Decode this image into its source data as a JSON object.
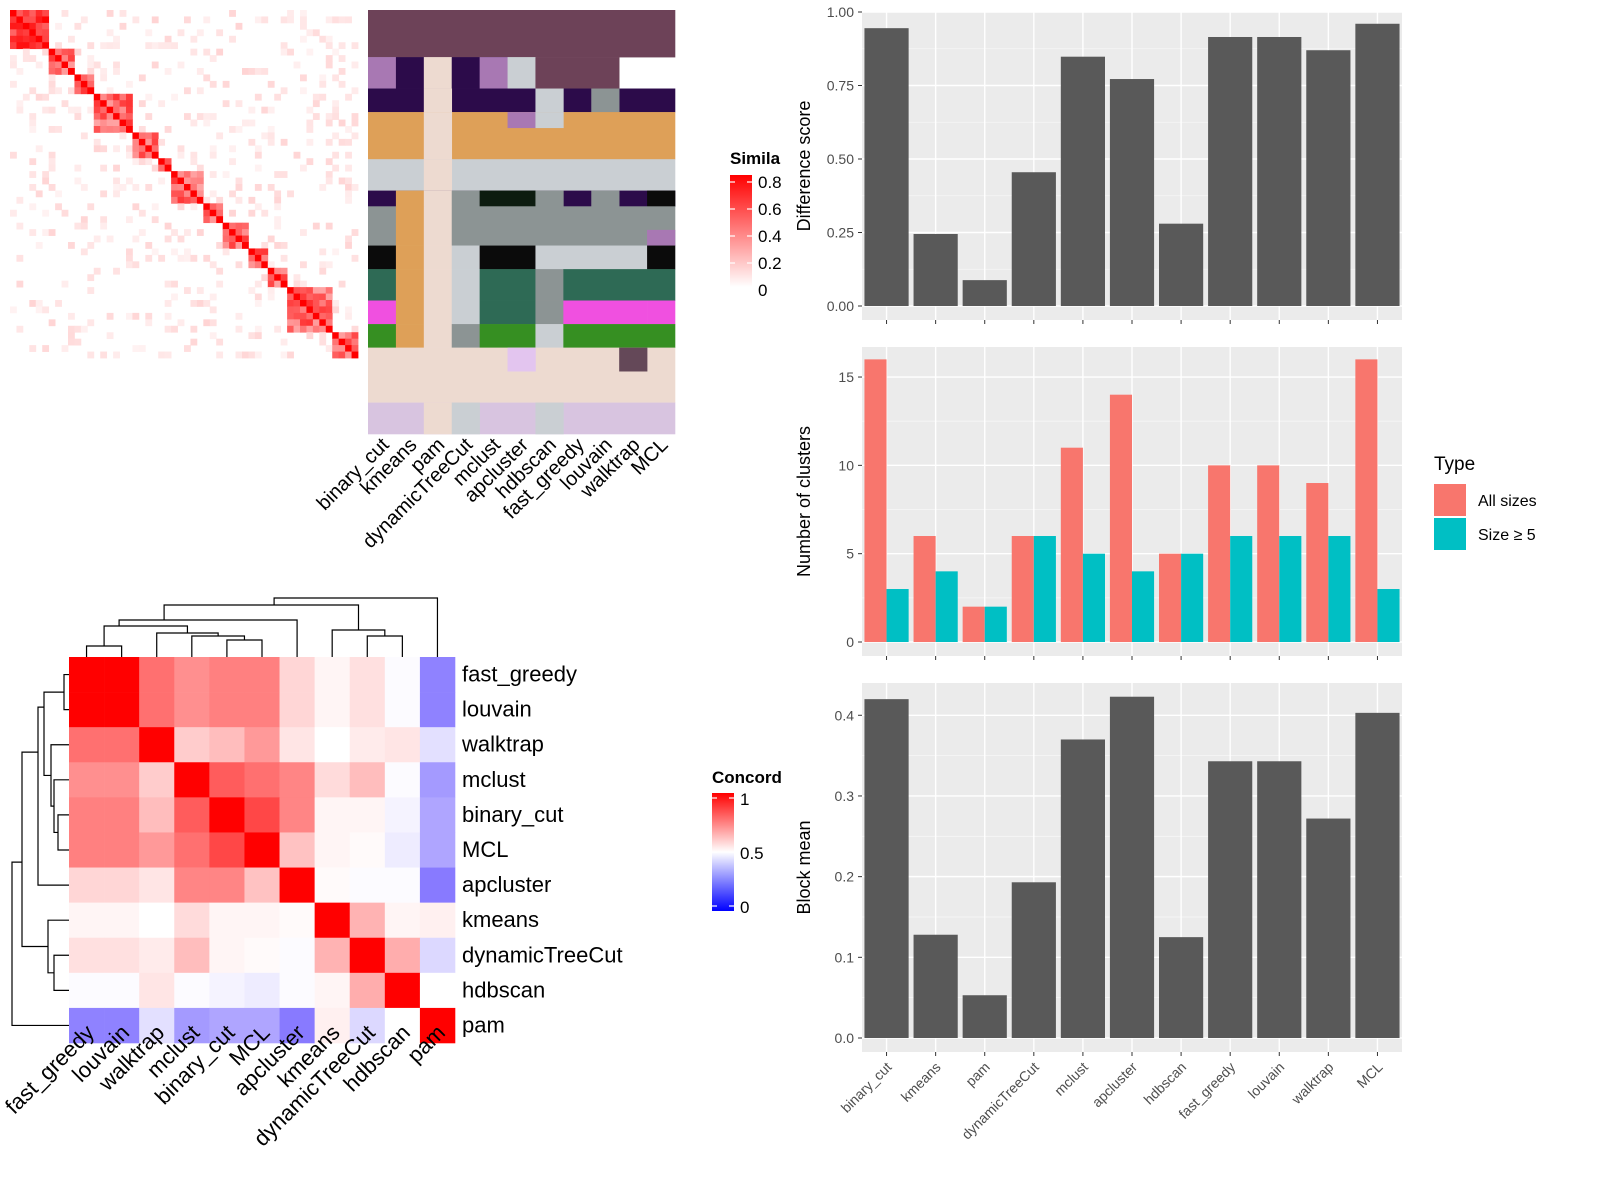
{
  "methods": [
    "binary_cut",
    "kmeans",
    "pam",
    "dynamicTreeCut",
    "mclust",
    "apcluster",
    "hdbscan",
    "fast_greedy",
    "louvain",
    "walktrap",
    "MCL"
  ],
  "similarity_legend": {
    "title": "Simila",
    "ticks": [
      "0.8",
      "0.6",
      "0.4",
      "0.2",
      "0"
    ]
  },
  "concordance_legend": {
    "title": "Concord",
    "ticks": [
      "1",
      "0.5",
      "0"
    ]
  },
  "cluster_palette": [
    "#6d4258",
    "#a878b3",
    "#2c0b4a",
    "#dea058",
    "#cacfd3",
    "#0d1c10",
    "#8c9494",
    "#0b0b0b",
    "#2e6a55",
    "#f050e0",
    "#368f22",
    "#eddad0",
    "#e3c5ef",
    "#d8c4e0",
    "#644858"
  ],
  "cluster_blocks": [
    {
      "rows": [
        0,
        6
      ],
      "cols": [
        0,
        10
      ],
      "c": 0
    },
    {
      "rows": [
        6,
        10
      ],
      "cols": [
        0,
        0
      ],
      "c": 1
    },
    {
      "rows": [
        6,
        10
      ],
      "cols": [
        1,
        1
      ],
      "c": 2
    },
    {
      "rows": [
        6,
        10
      ],
      "cols": [
        2,
        2
      ],
      "c": 11
    },
    {
      "rows": [
        6,
        10
      ],
      "cols": [
        3,
        4
      ],
      "c": 2
    },
    {
      "rows": [
        6,
        10
      ],
      "cols": [
        4,
        4
      ],
      "c": 1
    },
    {
      "rows": [
        6,
        10
      ],
      "cols": [
        5,
        5
      ],
      "c": 4
    },
    {
      "rows": [
        6,
        10
      ],
      "cols": [
        6,
        8
      ],
      "c": 0
    },
    {
      "rows": [
        10,
        13
      ],
      "cols": [
        0,
        10
      ],
      "c": 2
    },
    {
      "rows": [
        10,
        13
      ],
      "cols": [
        2,
        2
      ],
      "c": 11
    },
    {
      "rows": [
        10,
        13
      ],
      "cols": [
        6,
        6
      ],
      "c": 4
    },
    {
      "rows": [
        10,
        13
      ],
      "cols": [
        8,
        8
      ],
      "c": 6
    },
    {
      "rows": [
        13,
        19
      ],
      "cols": [
        0,
        10
      ],
      "c": 3
    },
    {
      "rows": [
        13,
        19
      ],
      "cols": [
        2,
        2
      ],
      "c": 11
    },
    {
      "rows": [
        13,
        15
      ],
      "cols": [
        5,
        5
      ],
      "c": 1
    },
    {
      "rows": [
        13,
        15
      ],
      "cols": [
        6,
        6
      ],
      "c": 4
    },
    {
      "rows": [
        19,
        23
      ],
      "cols": [
        0,
        10
      ],
      "c": 4
    },
    {
      "rows": [
        19,
        23
      ],
      "cols": [
        2,
        2
      ],
      "c": 11
    },
    {
      "rows": [
        23,
        25
      ],
      "cols": [
        0,
        10
      ],
      "c": 2
    },
    {
      "rows": [
        23,
        25
      ],
      "cols": [
        1,
        1
      ],
      "c": 3
    },
    {
      "rows": [
        23,
        25
      ],
      "cols": [
        2,
        2
      ],
      "c": 11
    },
    {
      "rows": [
        23,
        25
      ],
      "cols": [
        3,
        3
      ],
      "c": 6
    },
    {
      "rows": [
        23,
        25
      ],
      "cols": [
        4,
        5
      ],
      "c": 5
    },
    {
      "rows": [
        23,
        25
      ],
      "cols": [
        6,
        6
      ],
      "c": 6
    },
    {
      "rows": [
        23,
        25
      ],
      "cols": [
        8,
        8
      ],
      "c": 6
    },
    {
      "rows": [
        23,
        25
      ],
      "cols": [
        10,
        10
      ],
      "c": 7
    },
    {
      "rows": [
        25,
        30
      ],
      "cols": [
        0,
        0
      ],
      "c": 6
    },
    {
      "rows": [
        25,
        30
      ],
      "cols": [
        1,
        1
      ],
      "c": 3
    },
    {
      "rows": [
        25,
        30
      ],
      "cols": [
        2,
        2
      ],
      "c": 11
    },
    {
      "rows": [
        25,
        30
      ],
      "cols": [
        3,
        10
      ],
      "c": 6
    },
    {
      "rows": [
        28,
        30
      ],
      "cols": [
        10,
        10
      ],
      "c": 1
    },
    {
      "rows": [
        30,
        33
      ],
      "cols": [
        0,
        0
      ],
      "c": 7
    },
    {
      "rows": [
        30,
        33
      ],
      "cols": [
        1,
        1
      ],
      "c": 3
    },
    {
      "rows": [
        30,
        33
      ],
      "cols": [
        2,
        2
      ],
      "c": 11
    },
    {
      "rows": [
        30,
        33
      ],
      "cols": [
        3,
        3
      ],
      "c": 4
    },
    {
      "rows": [
        30,
        33
      ],
      "cols": [
        4,
        5
      ],
      "c": 7
    },
    {
      "rows": [
        30,
        33
      ],
      "cols": [
        6,
        9
      ],
      "c": 4
    },
    {
      "rows": [
        30,
        33
      ],
      "cols": [
        10,
        10
      ],
      "c": 7
    },
    {
      "rows": [
        33,
        37
      ],
      "cols": [
        0,
        0
      ],
      "c": 8
    },
    {
      "rows": [
        33,
        37
      ],
      "cols": [
        1,
        1
      ],
      "c": 3
    },
    {
      "rows": [
        33,
        37
      ],
      "cols": [
        2,
        2
      ],
      "c": 11
    },
    {
      "rows": [
        33,
        37
      ],
      "cols": [
        3,
        3
      ],
      "c": 4
    },
    {
      "rows": [
        33,
        37
      ],
      "cols": [
        4,
        5
      ],
      "c": 8
    },
    {
      "rows": [
        33,
        37
      ],
      "cols": [
        6,
        6
      ],
      "c": 6
    },
    {
      "rows": [
        33,
        37
      ],
      "cols": [
        7,
        10
      ],
      "c": 8
    },
    {
      "rows": [
        37,
        40
      ],
      "cols": [
        0,
        0
      ],
      "c": 9
    },
    {
      "rows": [
        37,
        40
      ],
      "cols": [
        1,
        1
      ],
      "c": 3
    },
    {
      "rows": [
        37,
        40
      ],
      "cols": [
        2,
        2
      ],
      "c": 11
    },
    {
      "rows": [
        37,
        40
      ],
      "cols": [
        3,
        3
      ],
      "c": 4
    },
    {
      "rows": [
        37,
        40
      ],
      "cols": [
        4,
        5
      ],
      "c": 8
    },
    {
      "rows": [
        37,
        40
      ],
      "cols": [
        6,
        6
      ],
      "c": 6
    },
    {
      "rows": [
        37,
        40
      ],
      "cols": [
        7,
        9
      ],
      "c": 9
    },
    {
      "rows": [
        37,
        40
      ],
      "cols": [
        10,
        10
      ],
      "c": 9
    },
    {
      "rows": [
        40,
        43
      ],
      "cols": [
        0,
        0
      ],
      "c": 10
    },
    {
      "rows": [
        40,
        43
      ],
      "cols": [
        1,
        1
      ],
      "c": 3
    },
    {
      "rows": [
        40,
        43
      ],
      "cols": [
        2,
        2
      ],
      "c": 11
    },
    {
      "rows": [
        40,
        43
      ],
      "cols": [
        3,
        3
      ],
      "c": 6
    },
    {
      "rows": [
        40,
        43
      ],
      "cols": [
        4,
        5
      ],
      "c": 10
    },
    {
      "rows": [
        40,
        43
      ],
      "cols": [
        6,
        6
      ],
      "c": 4
    },
    {
      "rows": [
        40,
        43
      ],
      "cols": [
        7,
        10
      ],
      "c": 10
    },
    {
      "rows": [
        43,
        50
      ],
      "cols": [
        0,
        10
      ],
      "c": 11
    },
    {
      "rows": [
        43,
        46
      ],
      "cols": [
        5,
        5
      ],
      "c": 12
    },
    {
      "rows": [
        43,
        46
      ],
      "cols": [
        9,
        9
      ],
      "c": 14
    },
    {
      "rows": [
        50,
        54
      ],
      "cols": [
        0,
        10
      ],
      "c": 13
    },
    {
      "rows": [
        50,
        54
      ],
      "cols": [
        2,
        2
      ],
      "c": 11
    },
    {
      "rows": [
        50,
        54
      ],
      "cols": [
        3,
        3
      ],
      "c": 4
    },
    {
      "rows": [
        50,
        54
      ],
      "cols": [
        6,
        6
      ],
      "c": 4
    }
  ],
  "concordance_heatmap": {
    "order": [
      "fast_greedy",
      "louvain",
      "walktrap",
      "mclust",
      "binary_cut",
      "MCL",
      "apcluster",
      "kmeans",
      "dynamicTreeCut",
      "hdbscan",
      "pam"
    ],
    "values": [
      [
        1.0,
        1.0,
        0.78,
        0.72,
        0.75,
        0.75,
        0.58,
        0.52,
        0.56,
        0.49,
        0.18
      ],
      [
        1.0,
        1.0,
        0.78,
        0.72,
        0.75,
        0.75,
        0.58,
        0.52,
        0.56,
        0.49,
        0.18
      ],
      [
        0.78,
        0.78,
        1.0,
        0.6,
        0.63,
        0.7,
        0.55,
        0.5,
        0.54,
        0.55,
        0.42
      ],
      [
        0.72,
        0.72,
        0.6,
        1.0,
        0.82,
        0.78,
        0.74,
        0.57,
        0.63,
        0.49,
        0.24
      ],
      [
        0.75,
        0.75,
        0.63,
        0.82,
        1.0,
        0.86,
        0.74,
        0.52,
        0.52,
        0.47,
        0.27
      ],
      [
        0.75,
        0.75,
        0.7,
        0.78,
        0.86,
        1.0,
        0.62,
        0.52,
        0.51,
        0.45,
        0.27
      ],
      [
        0.58,
        0.58,
        0.55,
        0.74,
        0.74,
        0.62,
        1.0,
        0.51,
        0.49,
        0.49,
        0.16
      ],
      [
        0.52,
        0.52,
        0.5,
        0.57,
        0.52,
        0.52,
        0.51,
        1.0,
        0.65,
        0.52,
        0.53
      ],
      [
        0.56,
        0.56,
        0.54,
        0.63,
        0.52,
        0.51,
        0.49,
        0.65,
        1.0,
        0.66,
        0.4
      ],
      [
        0.49,
        0.49,
        0.55,
        0.49,
        0.47,
        0.45,
        0.49,
        0.52,
        0.66,
        1.0,
        0.5
      ],
      [
        0.18,
        0.18,
        0.42,
        0.24,
        0.27,
        0.27,
        0.16,
        0.53,
        0.4,
        0.5,
        1.0
      ]
    ]
  },
  "chart_data": [
    {
      "type": "bar",
      "ylabel": "Difference score",
      "categories": [
        "binary_cut",
        "kmeans",
        "pam",
        "dynamicTreeCut",
        "mclust",
        "apcluster",
        "hdbscan",
        "fast_greedy",
        "louvain",
        "walktrap",
        "MCL"
      ],
      "values": [
        0.945,
        0.245,
        0.088,
        0.455,
        0.848,
        0.772,
        0.28,
        0.915,
        0.915,
        0.87,
        0.96
      ],
      "ylim": [
        0,
        1.0
      ],
      "yticks": [
        "0.00",
        "0.25",
        "0.50",
        "0.75",
        "1.00"
      ],
      "grid": true
    },
    {
      "type": "bar",
      "ylabel": "Number of clusters",
      "categories": [
        "binary_cut",
        "kmeans",
        "pam",
        "dynamicTreeCut",
        "mclust",
        "apcluster",
        "hdbscan",
        "fast_greedy",
        "louvain",
        "walktrap",
        "MCL"
      ],
      "legend_title": "Type",
      "legend_position": "right",
      "series": [
        {
          "name": "All sizes",
          "color": "#f8766d",
          "values": [
            16,
            6,
            2,
            6,
            11,
            14,
            5,
            10,
            10,
            9,
            16
          ]
        },
        {
          "name": "Size ≥ 5",
          "color": "#00bfc4",
          "values": [
            3,
            4,
            2,
            6,
            5,
            4,
            5,
            6,
            6,
            6,
            3
          ]
        }
      ],
      "ylim": [
        0,
        16.7
      ],
      "yticks": [
        "0",
        "5",
        "10",
        "15"
      ],
      "grid": true
    },
    {
      "type": "bar",
      "ylabel": "Block mean",
      "categories": [
        "binary_cut",
        "kmeans",
        "pam",
        "dynamicTreeCut",
        "mclust",
        "apcluster",
        "hdbscan",
        "fast_greedy",
        "louvain",
        "walktrap",
        "MCL"
      ],
      "values": [
        0.42,
        0.128,
        0.053,
        0.193,
        0.37,
        0.423,
        0.125,
        0.343,
        0.343,
        0.272,
        0.403
      ],
      "ylim": [
        0,
        0.44
      ],
      "yticks": [
        "0.0",
        "0.1",
        "0.2",
        "0.3",
        "0.4"
      ],
      "grid": true
    }
  ],
  "colors": {
    "bar_gray": "#595959",
    "panel_bg": "#ebebeb",
    "similarity_red": "#ff0000"
  }
}
